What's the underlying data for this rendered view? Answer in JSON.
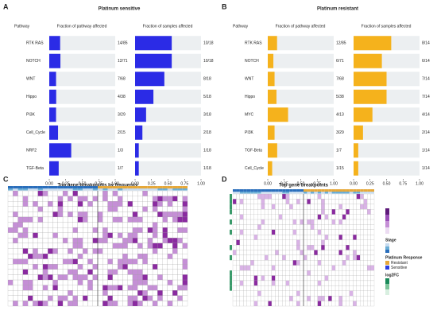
{
  "panels": [
    {
      "letter": "A",
      "title": "Platinum sensitive",
      "color": "#2b2be6",
      "row_header": "Pathway",
      "left_header": "Fraction of pathway affected",
      "right_header": "Fraction of samples affected",
      "categories": [
        "RTK RAS",
        "NOTCH",
        "WNT",
        "Hippo",
        "PI3K",
        "Cell_Cycle",
        "NRF2",
        "TGF-Beta"
      ],
      "pathway": {
        "values": [
          0.165,
          0.169,
          0.103,
          0.105,
          0.103,
          0.133,
          0.333,
          0.143
        ],
        "value_labels": [
          "14/85",
          "12/71",
          "7/68",
          "4/38",
          "3/29",
          "2/15",
          "1/3",
          "1/7"
        ]
      },
      "samples": {
        "values": [
          0.556,
          0.556,
          0.444,
          0.278,
          0.167,
          0.111,
          0.056,
          0.056
        ],
        "value_labels": [
          "10/18",
          "10/18",
          "8/18",
          "5/18",
          "3/18",
          "2/18",
          "1/18",
          "1/18"
        ]
      },
      "xlim": [
        0,
        1
      ],
      "xticks": [
        {
          "value": 0,
          "label": "0.00"
        },
        {
          "value": 0.25,
          "label": "0.25"
        },
        {
          "value": 0.5,
          "label": "0.50"
        },
        {
          "value": 0.75,
          "label": "0.75"
        },
        {
          "value": 1,
          "label": "1.00"
        }
      ]
    },
    {
      "letter": "B",
      "title": "Platinum resistant",
      "color": "#f5b21c",
      "row_header": "Pathway",
      "left_header": "Fraction of pathway affected",
      "right_header": "Fraction of samples affected",
      "categories": [
        "RTK RAS",
        "NOTCH",
        "WNT",
        "Hippo",
        "MYC",
        "PI3K",
        "TGF-Beta",
        "Cell_Cycle"
      ],
      "pathway": {
        "values": [
          0.141,
          0.085,
          0.103,
          0.132,
          0.308,
          0.103,
          0.143,
          0.067
        ],
        "value_labels": [
          "12/85",
          "6/71",
          "7/68",
          "5/38",
          "4/13",
          "3/29",
          "1/7",
          "1/15"
        ]
      },
      "samples": {
        "values": [
          0.571,
          0.429,
          0.5,
          0.5,
          0.286,
          0.143,
          0.071,
          0.071
        ],
        "value_labels": [
          "8/14",
          "6/14",
          "7/14",
          "7/14",
          "4/14",
          "2/14",
          "1/14",
          "1/14"
        ]
      },
      "xlim": [
        0,
        1
      ],
      "xticks": [
        {
          "value": 0,
          "label": "0.00"
        },
        {
          "value": 0.25,
          "label": "0.25"
        },
        {
          "value": 0.5,
          "label": "0.50"
        },
        {
          "value": 0.75,
          "label": "0.75"
        },
        {
          "value": 1,
          "label": "1.00"
        }
      ]
    }
  ],
  "heatmaps": [
    {
      "letter": "C",
      "title": "Top gene breakpoints by frequency"
    },
    {
      "letter": "D",
      "title": "Top gene breakpoints",
      "legend_stage": "Stage",
      "legend_response": "Platinum Response",
      "response_items": [
        "Resistant",
        "Sensitive"
      ],
      "legend_fc": "log2FC"
    }
  ]
}
